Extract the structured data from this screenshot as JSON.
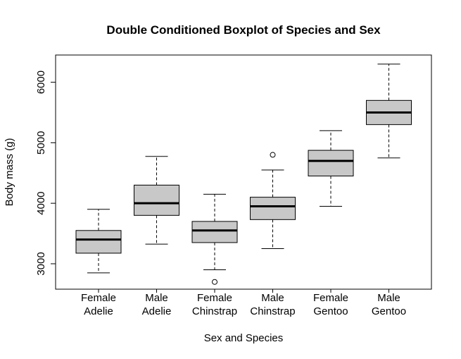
{
  "chart_data": {
    "type": "boxplot",
    "title": "Double Conditioned Boxplot of Species and Sex",
    "xlabel": "Sex and Species",
    "ylabel": "Body mass (g)",
    "ylim": [
      2580,
      6450
    ],
    "yticks": [
      3000,
      4000,
      5000,
      6000
    ],
    "grid": false,
    "box_fill": "#c8c8c8",
    "categories": [
      {
        "line1": "Female",
        "line2": "Adelie"
      },
      {
        "line1": "Male",
        "line2": "Adelie"
      },
      {
        "line1": "Female",
        "line2": "Chinstrap"
      },
      {
        "line1": "Male",
        "line2": "Chinstrap"
      },
      {
        "line1": "Female",
        "line2": "Gentoo"
      },
      {
        "line1": "Male",
        "line2": "Gentoo"
      }
    ],
    "boxes": [
      {
        "whisker_low": 2850,
        "q1": 3175,
        "median": 3400,
        "q3": 3550,
        "whisker_high": 3900,
        "outliers": []
      },
      {
        "whisker_low": 3325,
        "q1": 3800,
        "median": 4000,
        "q3": 4300,
        "whisker_high": 4775,
        "outliers": []
      },
      {
        "whisker_low": 2900,
        "q1": 3350,
        "median": 3550,
        "q3": 3700,
        "whisker_high": 4150,
        "outliers": [
          2700
        ]
      },
      {
        "whisker_low": 3250,
        "q1": 3730,
        "median": 3950,
        "q3": 4100,
        "whisker_high": 4550,
        "outliers": [
          4800
        ]
      },
      {
        "whisker_low": 3950,
        "q1": 4450,
        "median": 4700,
        "q3": 4875,
        "whisker_high": 5200,
        "outliers": []
      },
      {
        "whisker_low": 4750,
        "q1": 5300,
        "median": 5500,
        "q3": 5700,
        "whisker_high": 6300,
        "outliers": []
      }
    ]
  }
}
